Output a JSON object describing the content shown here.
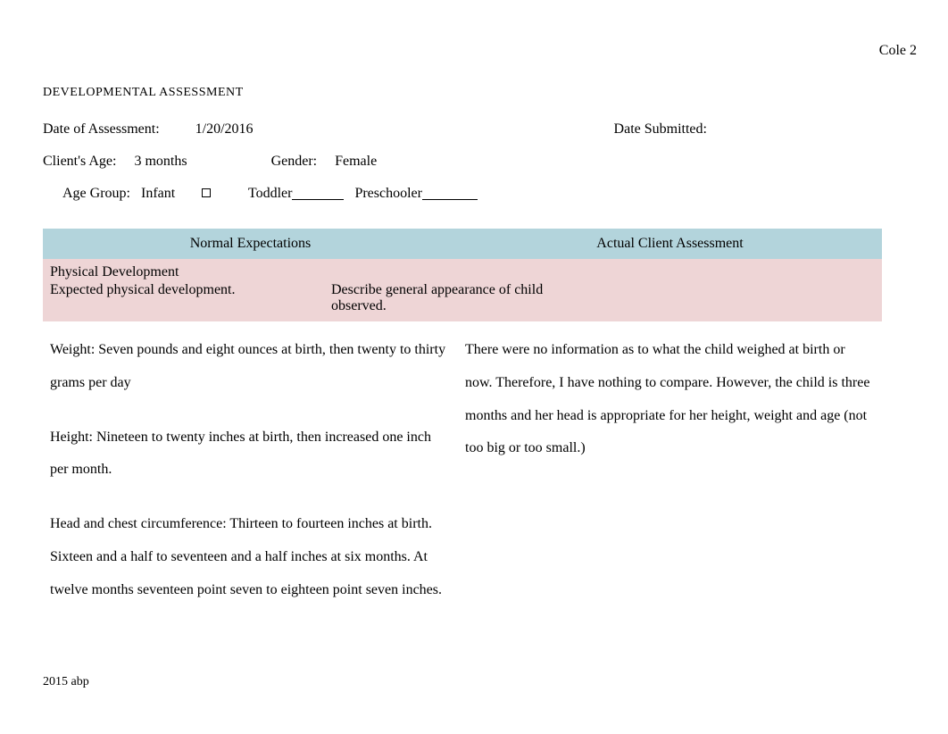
{
  "page_number": "Cole 2",
  "title": "DEVELOPMENTAL ASSESSMENT",
  "meta": {
    "date_assessment_label": "Date of Assessment:",
    "date_assessment_value": "1/20/2016",
    "date_submitted_label": "Date Submitted:",
    "client_age_label": "Client's Age:",
    "client_age_value": "3 months",
    "gender_label": "Gender:",
    "gender_value": "Female",
    "age_group_label": "Age Group:",
    "age_group_infant": "Infant",
    "age_group_toddler": "Toddler",
    "age_group_preschooler": "Preschooler"
  },
  "table": {
    "header_left": "Normal Expectations",
    "header_right": "Actual Client Assessment",
    "section_title": "Physical Development",
    "section_sub_left": "Expected physical development.",
    "section_sub_right_line1": "Describe general appearance of child",
    "section_sub_right_line2": " observed.",
    "left_body_p1": "Weight: Seven pounds and eight ounces at birth, then twenty to thirty grams per day",
    "left_body_p2": "Height: Nineteen to twenty inches at birth, then increased one inch per month.",
    "left_body_p3": "Head and chest circumference: Thirteen to fourteen inches at birth. Sixteen and a half to seventeen and a half inches at six months. At twelve months seventeen point seven to eighteen point seven inches.",
    "right_body_p1": "There were no information as to what the child weighed at birth or now. Therefore, I have nothing to compare. However, the child is three months and her head is appropriate for her height, weight and age (not too big or too small.)"
  },
  "footer": "2015 abp",
  "colors": {
    "header_bg": "#b3d4dc",
    "section_bg": "#eed5d6",
    "text": "#000000",
    "page_bg": "#ffffff"
  }
}
